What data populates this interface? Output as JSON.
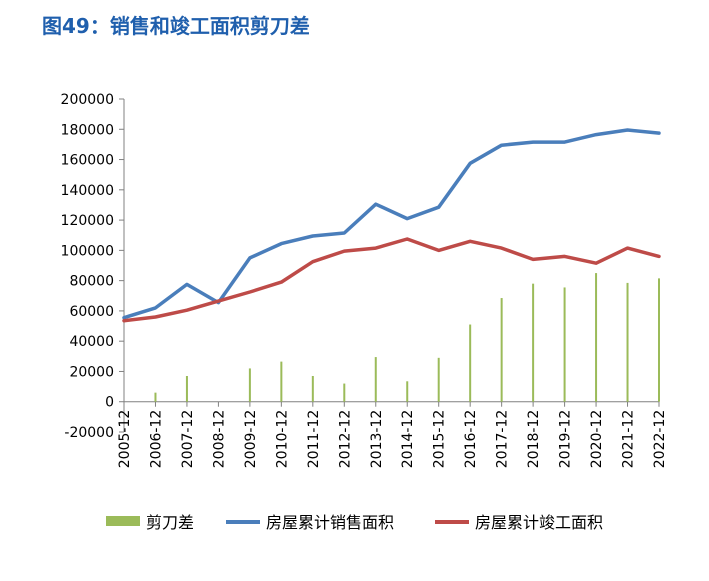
{
  "figure": {
    "title": "图49：销售和竣工面积剪刀差"
  },
  "colors": {
    "title": "#1f5fad",
    "bar": "#9bbb59",
    "sales_line": "#4a7ebb",
    "completion_line": "#be4b48",
    "axis": "#808080"
  },
  "chart_data": {
    "type": "line",
    "title": "",
    "xlabel": "",
    "ylabel": "",
    "categories": [
      "2005-12",
      "2006-12",
      "2007-12",
      "2008-12",
      "2009-12",
      "2010-12",
      "2011-12",
      "2012-12",
      "2013-12",
      "2014-12",
      "2015-12",
      "2016-12",
      "2017-12",
      "2018-12",
      "2019-12",
      "2020-12",
      "2021-12",
      "2022-12"
    ],
    "ylim": [
      -20000,
      200000
    ],
    "yticks": [
      -20000,
      0,
      20000,
      40000,
      60000,
      80000,
      100000,
      120000,
      140000,
      160000,
      180000,
      200000
    ],
    "series": [
      {
        "name": "剪刀差",
        "kind": "bar",
        "color": "#9bbb59",
        "values": [
          0,
          6000,
          17000,
          0,
          22000,
          26500,
          17000,
          12000,
          29500,
          13500,
          29000,
          51000,
          68500,
          78000,
          75500,
          85000,
          78500,
          81500
        ]
      },
      {
        "name": "房屋累计销售面积",
        "kind": "line",
        "color": "#4a7ebb",
        "values": [
          55500,
          62000,
          77500,
          65500,
          95000,
          104500,
          109500,
          111500,
          130500,
          121000,
          128500,
          157500,
          169500,
          171500,
          171500,
          176500,
          179500,
          177500
        ]
      },
      {
        "name": "房屋累计竣工面积",
        "kind": "line",
        "color": "#be4b48",
        "values": [
          53500,
          56000,
          60500,
          66500,
          72500,
          79000,
          92500,
          99500,
          101500,
          107500,
          100000,
          106000,
          101500,
          94000,
          96000,
          91500,
          101500,
          96000
        ]
      }
    ],
    "legend": {
      "position": "bottom"
    },
    "grid": false
  }
}
